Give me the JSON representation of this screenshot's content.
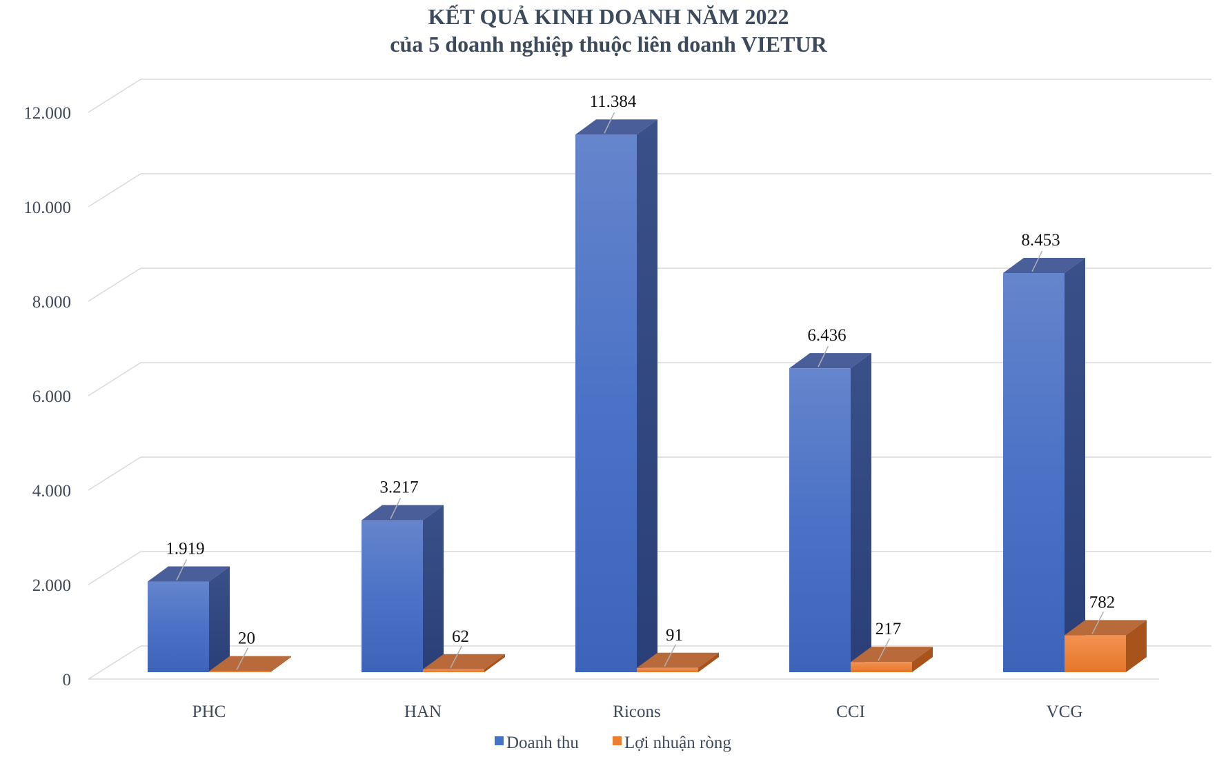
{
  "chart_data": {
    "type": "bar",
    "title": "KẾT QUẢ KINH DOANH NĂM 2022",
    "subtitle": "của 5 doanh nghiệp thuộc liên doanh VIETUR",
    "categories": [
      "PHC",
      "HAN",
      "Ricons",
      "CCI",
      "VCG"
    ],
    "series": [
      {
        "name": "Doanh thu",
        "values": [
          1919,
          3217,
          11384,
          6436,
          8453
        ],
        "labels": [
          "1.919",
          "3.217",
          "11.384",
          "6.436",
          "8.453"
        ],
        "color": "#4472c4"
      },
      {
        "name": "Lợi nhuận ròng",
        "values": [
          20,
          62,
          91,
          217,
          782
        ],
        "labels": [
          "20",
          "62",
          "91",
          "217",
          "782"
        ],
        "color": "#ed7d31"
      }
    ],
    "y_ticks": [
      "0",
      "2.000",
      "4.000",
      "6.000",
      "8.000",
      "10.000",
      "12.000"
    ],
    "ylim": [
      0,
      12000
    ],
    "grid": true,
    "legend": "bottom",
    "style": "3d-clustered-column"
  }
}
